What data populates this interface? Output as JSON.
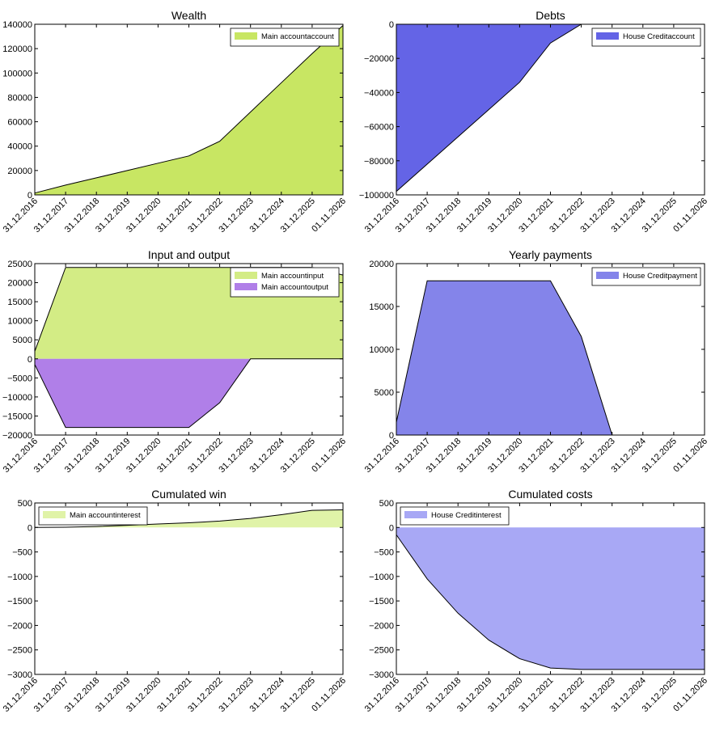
{
  "chart_data": [
    {
      "type": "area",
      "title": "Wealth",
      "categories": [
        "31.12.2016",
        "31.12.2017",
        "31.12.2018",
        "31.12.2019",
        "31.12.2020",
        "31.12.2021",
        "31.12.2022",
        "31.12.2023",
        "31.12.2024",
        "31.12.2025",
        "01.11.2026"
      ],
      "ylim": [
        0,
        140000
      ],
      "yticks": [
        0,
        20000,
        40000,
        60000,
        80000,
        100000,
        120000,
        140000
      ],
      "legend_position": "top-right",
      "series": [
        {
          "name": "Main accountaccount",
          "color": "#c8e663",
          "values": [
            1500,
            8000,
            14000,
            20000,
            26000,
            32000,
            44000,
            68000,
            92000,
            116000,
            139000
          ]
        }
      ]
    },
    {
      "type": "area",
      "title": "Debts",
      "categories": [
        "31.12.2016",
        "31.12.2017",
        "31.12.2018",
        "31.12.2019",
        "31.12.2020",
        "31.12.2021",
        "31.12.2022",
        "31.12.2023",
        "31.12.2024",
        "31.12.2025",
        "01.11.2026"
      ],
      "ylim": [
        -100000,
        0
      ],
      "yticks": [
        -100000,
        -80000,
        -60000,
        -40000,
        -20000,
        0
      ],
      "legend_position": "top-right",
      "series": [
        {
          "name": "House Creditaccount",
          "color": "#6464e6",
          "values": [
            -98000,
            -82000,
            -66000,
            -50000,
            -34000,
            -11000,
            0,
            0,
            0,
            0,
            0
          ]
        }
      ]
    },
    {
      "type": "area",
      "title": "Input and output",
      "categories": [
        "31.12.2016",
        "31.12.2017",
        "31.12.2018",
        "31.12.2019",
        "31.12.2020",
        "31.12.2021",
        "31.12.2022",
        "31.12.2023",
        "31.12.2024",
        "31.12.2025",
        "01.11.2026"
      ],
      "ylim": [
        -20000,
        25000
      ],
      "yticks": [
        -20000,
        -15000,
        -10000,
        -5000,
        0,
        5000,
        10000,
        15000,
        20000,
        25000
      ],
      "legend_position": "top-right",
      "series": [
        {
          "name": "Main accountinput",
          "color": "#d3ec85",
          "values": [
            2000,
            24000,
            24000,
            24000,
            24000,
            24000,
            24000,
            24000,
            24000,
            24000,
            22000
          ]
        },
        {
          "name": "Main accountoutput",
          "color": "#b07fe8",
          "values": [
            -1500,
            -18000,
            -18000,
            -18000,
            -18000,
            -18000,
            -11500,
            0,
            0,
            0,
            0
          ]
        }
      ]
    },
    {
      "type": "area",
      "title": "Yearly payments",
      "categories": [
        "31.12.2016",
        "31.12.2017",
        "31.12.2018",
        "31.12.2019",
        "31.12.2020",
        "31.12.2021",
        "31.12.2022",
        "31.12.2023",
        "31.12.2024",
        "31.12.2025",
        "01.11.2026"
      ],
      "ylim": [
        0,
        20000
      ],
      "yticks": [
        0,
        5000,
        10000,
        15000,
        20000
      ],
      "legend_position": "top-right",
      "series": [
        {
          "name": "House Creditpayment",
          "color": "#8484ea",
          "values": [
            1500,
            18000,
            18000,
            18000,
            18000,
            18000,
            11500,
            0,
            0,
            0,
            0
          ]
        }
      ]
    },
    {
      "type": "area",
      "title": "Cumulated win",
      "categories": [
        "31.12.2016",
        "31.12.2017",
        "31.12.2018",
        "31.12.2019",
        "31.12.2020",
        "31.12.2021",
        "31.12.2022",
        "31.12.2023",
        "31.12.2024",
        "31.12.2025",
        "01.11.2026"
      ],
      "ylim": [
        -3000,
        500
      ],
      "yticks": [
        -3000,
        -2500,
        -2000,
        -1500,
        -1000,
        -500,
        0,
        500
      ],
      "legend_position": "top-left",
      "series": [
        {
          "name": "Main accountinterest",
          "color": "#e0f3a8",
          "values": [
            0,
            5,
            20,
            45,
            70,
            95,
            130,
            185,
            260,
            350,
            360
          ]
        }
      ]
    },
    {
      "type": "area",
      "title": "Cumulated costs",
      "categories": [
        "31.12.2016",
        "31.12.2017",
        "31.12.2018",
        "31.12.2019",
        "31.12.2020",
        "31.12.2021",
        "31.12.2022",
        "31.12.2023",
        "31.12.2024",
        "31.12.2025",
        "01.11.2026"
      ],
      "ylim": [
        -3000,
        500
      ],
      "yticks": [
        -3000,
        -2500,
        -2000,
        -1500,
        -1000,
        -500,
        0,
        500
      ],
      "legend_position": "top-left",
      "series": [
        {
          "name": "House Creditinterest",
          "color": "#a8a8f5",
          "values": [
            -150,
            -1050,
            -1750,
            -2300,
            -2680,
            -2870,
            -2900,
            -2900,
            -2900,
            -2900,
            -2900
          ]
        }
      ]
    }
  ]
}
